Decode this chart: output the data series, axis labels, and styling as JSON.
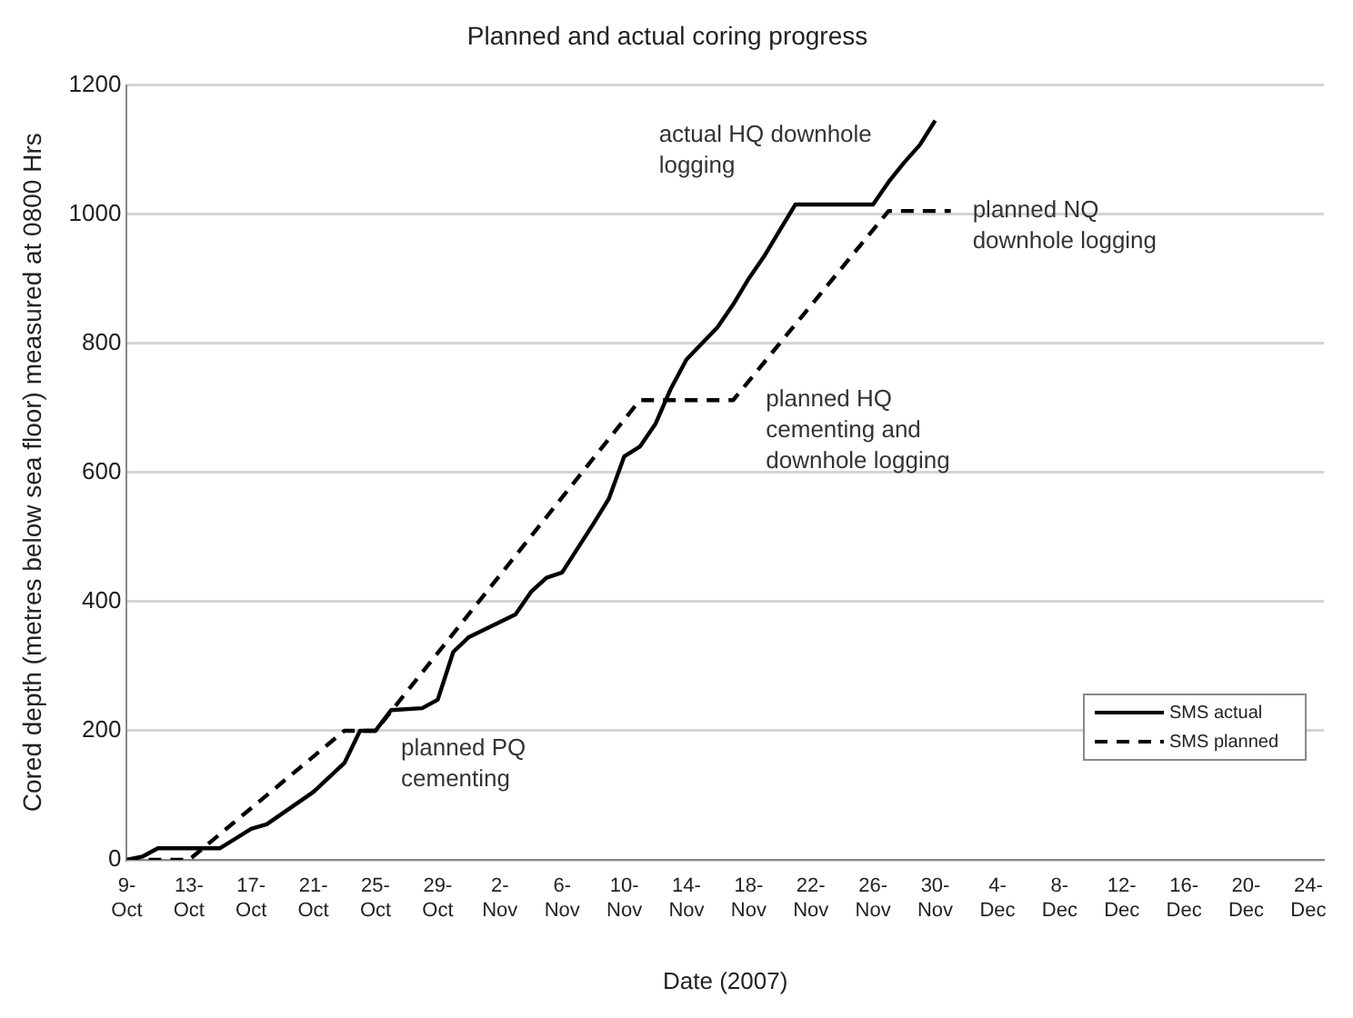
{
  "chart_data": {
    "type": "line",
    "title": "Planned and actual coring progress",
    "xlabel": "Date (2007)",
    "ylabel": "Cored depth (metres below sea floor) measured at 0800 Hrs",
    "xlim": [
      "2007-10-09",
      "2007-12-25"
    ],
    "xticks": [
      {
        "value": "2007-10-09",
        "label": "9-Oct"
      },
      {
        "value": "2007-10-13",
        "label": "13-Oct"
      },
      {
        "value": "2007-10-17",
        "label": "17-Oct"
      },
      {
        "value": "2007-10-21",
        "label": "21-Oct"
      },
      {
        "value": "2007-10-25",
        "label": "25-Oct"
      },
      {
        "value": "2007-10-29",
        "label": "29-Oct"
      },
      {
        "value": "2007-11-02",
        "label": "2-Nov"
      },
      {
        "value": "2007-11-06",
        "label": "6-Nov"
      },
      {
        "value": "2007-11-10",
        "label": "10-Nov"
      },
      {
        "value": "2007-11-14",
        "label": "14-Nov"
      },
      {
        "value": "2007-11-18",
        "label": "18-Nov"
      },
      {
        "value": "2007-11-22",
        "label": "22-Nov"
      },
      {
        "value": "2007-11-26",
        "label": "26-Nov"
      },
      {
        "value": "2007-11-30",
        "label": "30-Nov"
      },
      {
        "value": "2007-12-04",
        "label": "4-Dec"
      },
      {
        "value": "2007-12-08",
        "label": "8-Dec"
      },
      {
        "value": "2007-12-12",
        "label": "12-Dec"
      },
      {
        "value": "2007-12-16",
        "label": "16-Dec"
      },
      {
        "value": "2007-12-20",
        "label": "20-Dec"
      },
      {
        "value": "2007-12-24",
        "label": "24-Dec"
      }
    ],
    "ylim": [
      0,
      1200
    ],
    "yticks": [
      0,
      200,
      400,
      600,
      800,
      1000,
      1200
    ],
    "grid": "y",
    "legend": "bottom right",
    "marker": "none",
    "series": [
      {
        "name": "SMS actual",
        "color": "#000000",
        "line_style": "solid",
        "x": [
          "2007-10-09",
          "2007-10-10",
          "2007-10-11",
          "2007-10-15",
          "2007-10-17",
          "2007-10-18",
          "2007-10-21",
          "2007-10-23",
          "2007-10-24",
          "2007-10-25",
          "2007-10-26",
          "2007-10-28",
          "2007-10-29",
          "2007-10-30",
          "2007-10-31",
          "2007-11-03",
          "2007-11-04",
          "2007-11-05",
          "2007-11-06",
          "2007-11-08",
          "2007-11-09",
          "2007-11-10",
          "2007-11-11",
          "2007-11-12",
          "2007-11-13",
          "2007-11-14",
          "2007-11-15",
          "2007-11-16",
          "2007-11-17",
          "2007-11-18",
          "2007-11-19",
          "2007-11-20",
          "2007-11-21",
          "2007-11-26",
          "2007-11-27",
          "2007-11-28",
          "2007-11-29",
          "2007-11-30"
        ],
        "values": [
          0,
          5,
          18,
          18,
          48,
          55,
          105,
          150,
          200,
          200,
          232,
          235,
          248,
          322,
          345,
          380,
          415,
          437,
          445,
          520,
          559,
          625,
          640,
          675,
          730,
          775,
          800,
          825,
          860,
          900,
          935,
          975,
          1015,
          1015,
          1050,
          1080,
          1107,
          1145
        ]
      },
      {
        "name": "SMS planned",
        "color": "#000000",
        "line_style": "dashed",
        "x": [
          "2007-10-09",
          "2007-10-13",
          "2007-10-23",
          "2007-10-25",
          "2007-11-11",
          "2007-11-17",
          "2007-11-27",
          "2007-12-01"
        ],
        "values": [
          0,
          0,
          200,
          200,
          712,
          712,
          1005,
          1005
        ]
      }
    ],
    "annotations": [
      {
        "text": "actual HQ downhole logging",
        "x": "2007-11-21",
        "y": 1015
      },
      {
        "text": "planned NQ downhole logging",
        "x": "2007-12-01",
        "y": 1005
      },
      {
        "text": "planned HQ cementing and downhole logging",
        "x": "2007-11-17",
        "y": 712
      },
      {
        "text": "planned PQ cementing",
        "x": "2007-10-25",
        "y": 200
      }
    ]
  }
}
